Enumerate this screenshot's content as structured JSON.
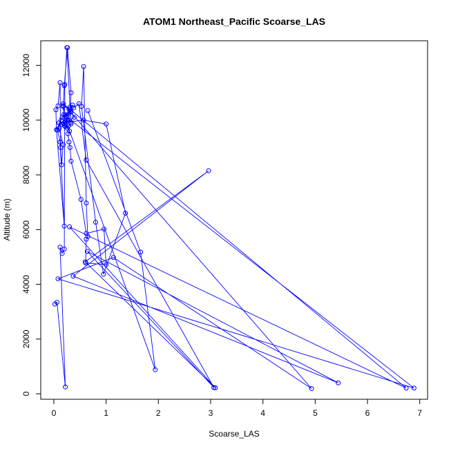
{
  "chart_data": {
    "type": "line",
    "title": "ATOM1 Northeast_Pacific Scoarse_LAS",
    "xlabel": "Scoarse_LAS",
    "ylabel": "Altitude (m)",
    "xlim": [
      -0.25,
      7.15
    ],
    "ylim": [
      -200,
      12900
    ],
    "x_ticks": [
      "0",
      "1",
      "2",
      "3",
      "4",
      "5",
      "6",
      "7"
    ],
    "y_ticks": [
      "0",
      "2000",
      "4000",
      "6000",
      "8000",
      "10000",
      "12000"
    ],
    "grid": false,
    "legend": "none",
    "markers": "open-circle",
    "series": [
      {
        "color": "#0000ff",
        "x": [
          0.02,
          0.06,
          0.22,
          0.12,
          0.16,
          0.2,
          0.21,
          0.25,
          0.31,
          0.36,
          0.33,
          0.28,
          0.24,
          0.3,
          0.27,
          0.33,
          0.33,
          0.28,
          0.22,
          0.25,
          0.18,
          0.2,
          0.26,
          0.33,
          0.31,
          0.28,
          0.22,
          0.19,
          0.18,
          0.29,
          0.39,
          0.15,
          0.2,
          0.26,
          0.3,
          0.27,
          0.29,
          0.31,
          0.33,
          0.52,
          0.62,
          0.96,
          1.0,
          0.61,
          0.62,
          0.65,
          0.62,
          0.57,
          0.53,
          0.8,
          0.95,
          1.37,
          1.0,
          0.57,
          0.1,
          0.07,
          0.12,
          0.2,
          0.05,
          0.04,
          0.08,
          0.12,
          0.13,
          0.15,
          0.18,
          0.1,
          0.1,
          0.14,
          0.16,
          0.22,
          0.31,
          0.38,
          0.48,
          0.62,
          3.06,
          0.64,
          5.44,
          0.37,
          2.96,
          0.6,
          3.09,
          0.3,
          6.74,
          0.18,
          4.93,
          1.14,
          0.08,
          6.89,
          0.19,
          1.94,
          1.66,
          0.65
        ],
        "y": [
          3280,
          3340,
          250,
          5360,
          5130,
          5290,
          11300,
          12650,
          10480,
          10550,
          10300,
          10220,
          10130,
          10000,
          9970,
          9920,
          9860,
          9790,
          9760,
          10000,
          10500,
          11260,
          12650,
          11000,
          10400,
          10150,
          9940,
          9870,
          10530,
          10400,
          10100,
          9840,
          9800,
          9700,
          9600,
          9500,
          9200,
          9000,
          8500,
          7100,
          5860,
          6020,
          4720,
          4780,
          5650,
          5750,
          6970,
          11960,
          10500,
          6270,
          4370,
          6600,
          9860,
          10000,
          9900,
          9640,
          9200,
          6130,
          9650,
          10380,
          10520,
          11370,
          9000,
          8370,
          9100,
          9700,
          9900,
          10000,
          10100,
          10200,
          10300,
          10450,
          10600,
          8540,
          230,
          5200,
          400,
          4300,
          8150,
          4820,
          220,
          6100,
          210,
          10600,
          190,
          4980,
          4200,
          210,
          10200,
          880,
          5180,
          10350
        ]
      }
    ]
  }
}
